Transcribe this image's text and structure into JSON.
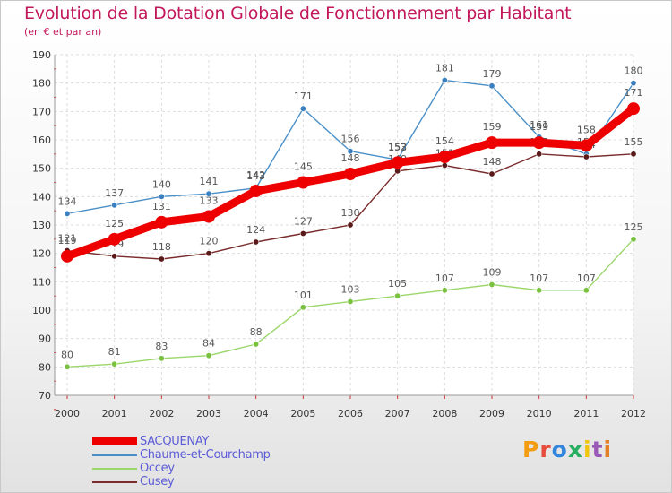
{
  "header": {
    "title": "Evolution de la Dotation Globale de Fonctionnement par Habitant",
    "subtitle": "(en € et par an)"
  },
  "brand": {
    "text": "Proxiti",
    "colors": [
      "#f39c12",
      "#e74c3c",
      "#2e86de",
      "#27ae60",
      "#f1c40f",
      "#9b59b6",
      "#e67e22"
    ]
  },
  "chart_data": {
    "type": "line",
    "title": "Evolution de la Dotation Globale de Fonctionnement par Habitant",
    "subtitle": "(en € et par an)",
    "x": [
      "2000",
      "2001",
      "2002",
      "2003",
      "2004",
      "2005",
      "2006",
      "2007",
      "2008",
      "2009",
      "2010",
      "2011",
      "2012"
    ],
    "ylim": [
      70,
      190
    ],
    "yticks": [
      70,
      80,
      90,
      100,
      110,
      120,
      130,
      140,
      150,
      160,
      170,
      180,
      190
    ],
    "grid": true,
    "legend_position": "bottom-left",
    "series": [
      {
        "name": "Chaume-et-Courchamp",
        "color": "#4a90c8",
        "marker": "#3a80c0",
        "values": [
          134,
          137,
          140,
          141,
          143,
          171,
          156,
          153,
          181,
          179,
          161,
          155,
          180
        ]
      },
      {
        "name": "Occey",
        "color": "#9bd66b",
        "marker": "#7ac142",
        "values": [
          80,
          81,
          83,
          84,
          88,
          101,
          103,
          105,
          107,
          109,
          107,
          107,
          125
        ]
      },
      {
        "name": "Cusey",
        "color": "#7a2c2c",
        "marker": "#5a1a1a",
        "values": [
          121,
          119,
          118,
          120,
          124,
          127,
          130,
          149,
          151,
          148,
          155,
          154,
          155
        ]
      },
      {
        "name": "SACQUENAY",
        "color": "#ee0000",
        "marker": "#ee0000",
        "values": [
          119,
          125,
          131,
          133,
          142,
          145,
          148,
          152,
          154,
          159,
          159,
          158,
          171
        ]
      }
    ],
    "legend_order": [
      "SACQUENAY",
      "Chaume-et-Courchamp",
      "Occey",
      "Cusey"
    ]
  }
}
